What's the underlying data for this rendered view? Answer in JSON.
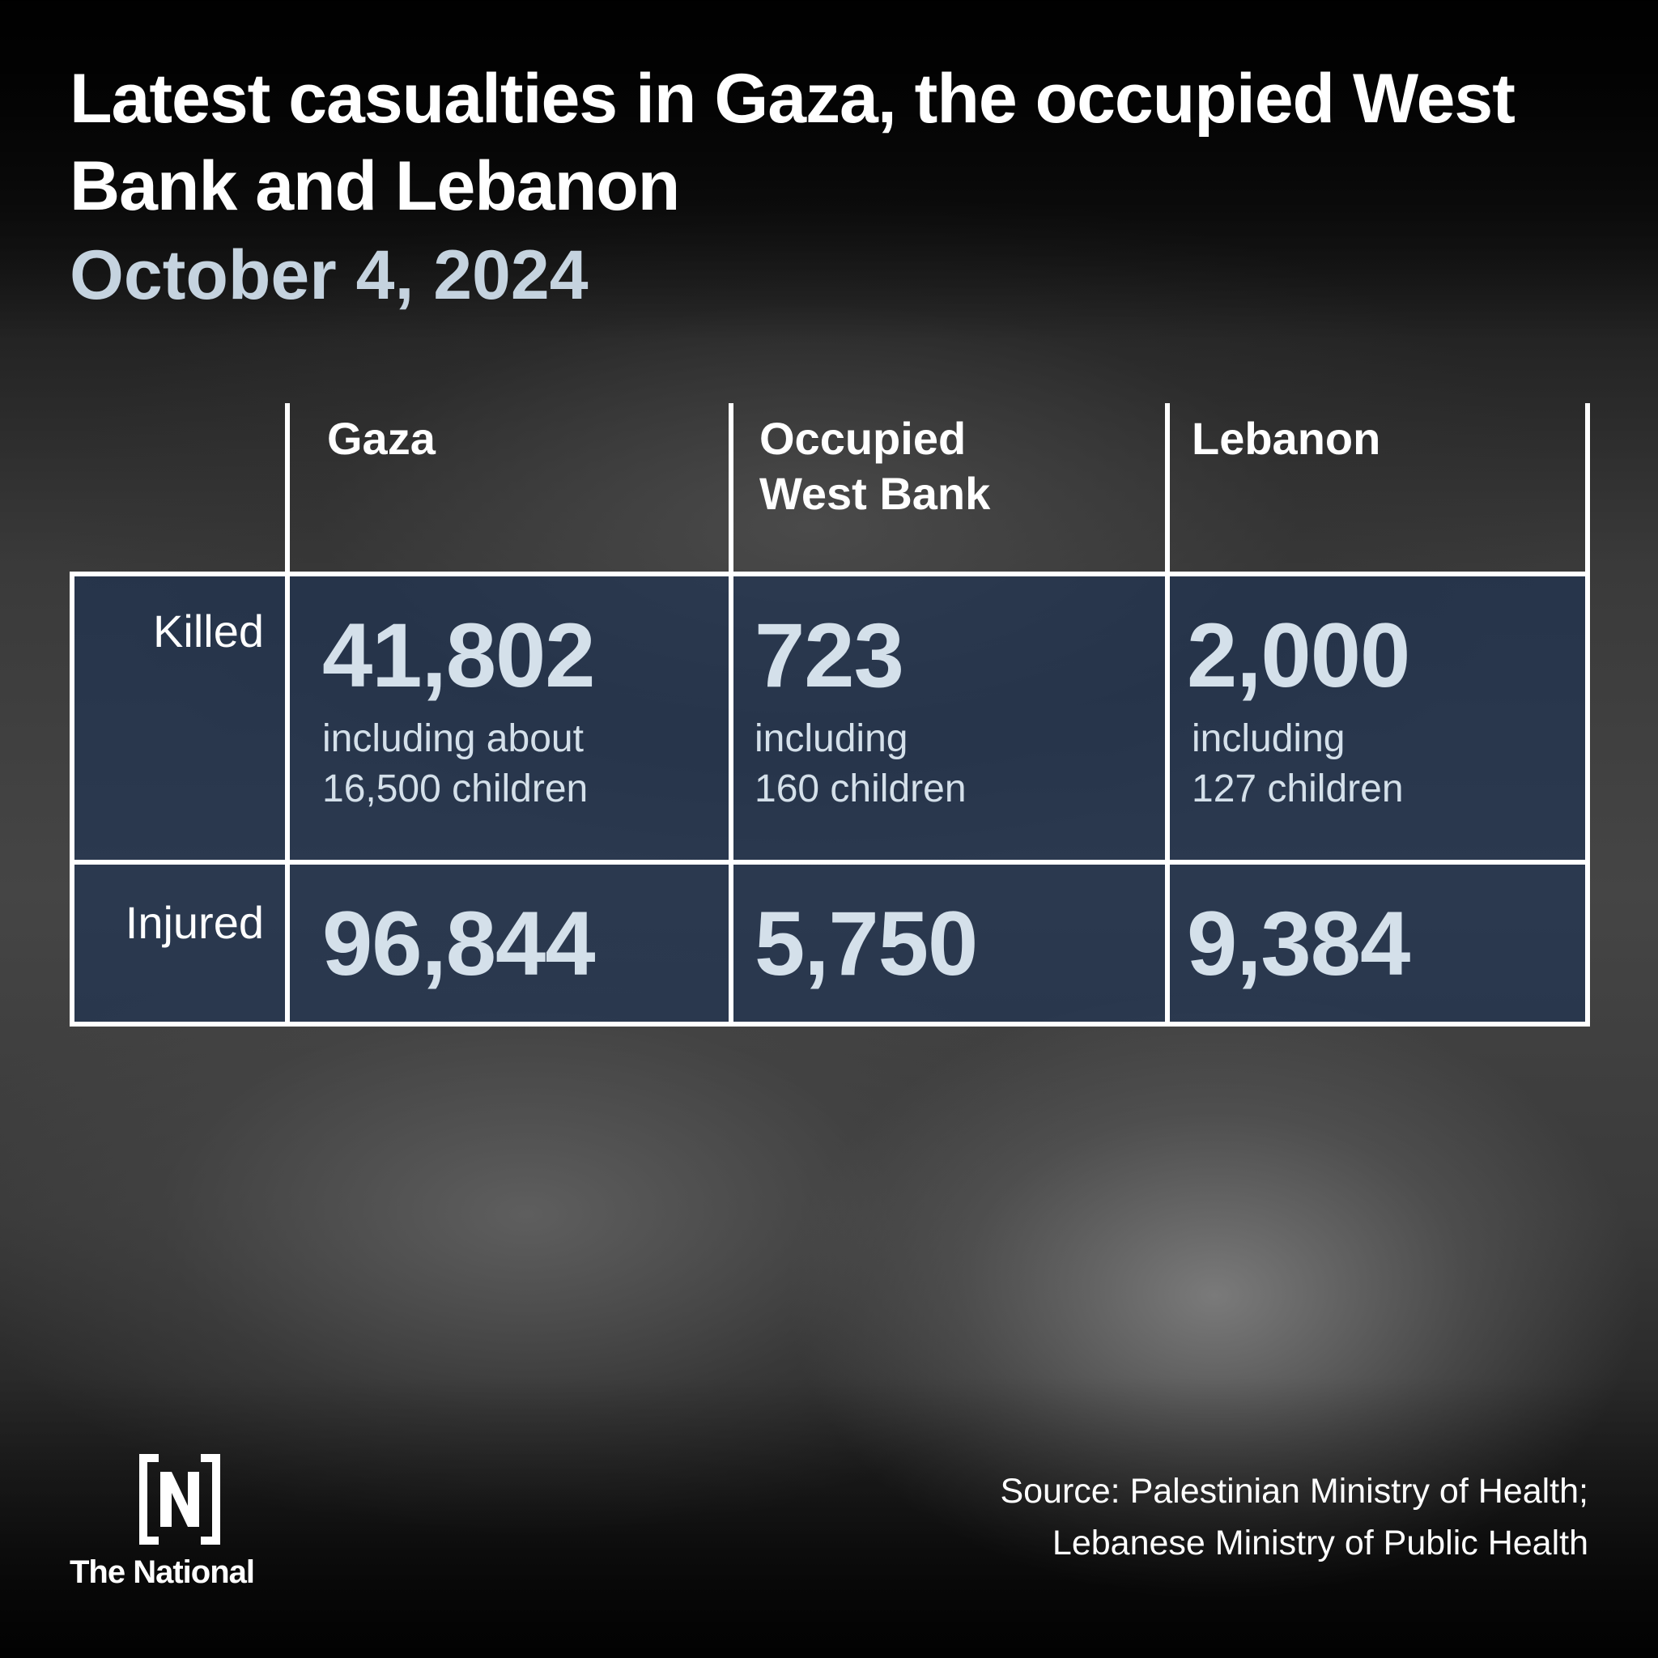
{
  "title": "Latest casualties in Gaza, the occupied West Bank and Lebanon",
  "subtitle": "October 4, 2024",
  "chart_data": {
    "type": "table",
    "columns": [
      "Gaza",
      "Occupied West Bank",
      "Lebanon"
    ],
    "rows": [
      {
        "label": "Killed",
        "values": [
          "41,802",
          "723",
          "2,000"
        ],
        "notes": [
          [
            "including about",
            "16,500 children"
          ],
          [
            "including",
            "160 children"
          ],
          [
            "including",
            "127 children"
          ]
        ]
      },
      {
        "label": "Injured",
        "values": [
          "96,844",
          "5,750",
          "9,384"
        ]
      }
    ]
  },
  "source": {
    "line1": "Source: Palestinian Ministry of Health;",
    "line2": "Lebanese Ministry of Public Health"
  },
  "logo": {
    "text": "The National",
    "icon": "brand-logo-icon"
  },
  "colors": {
    "numbers": "#d4e0ea",
    "subtitle": "#c5d3df",
    "tint": "#1c3255"
  }
}
